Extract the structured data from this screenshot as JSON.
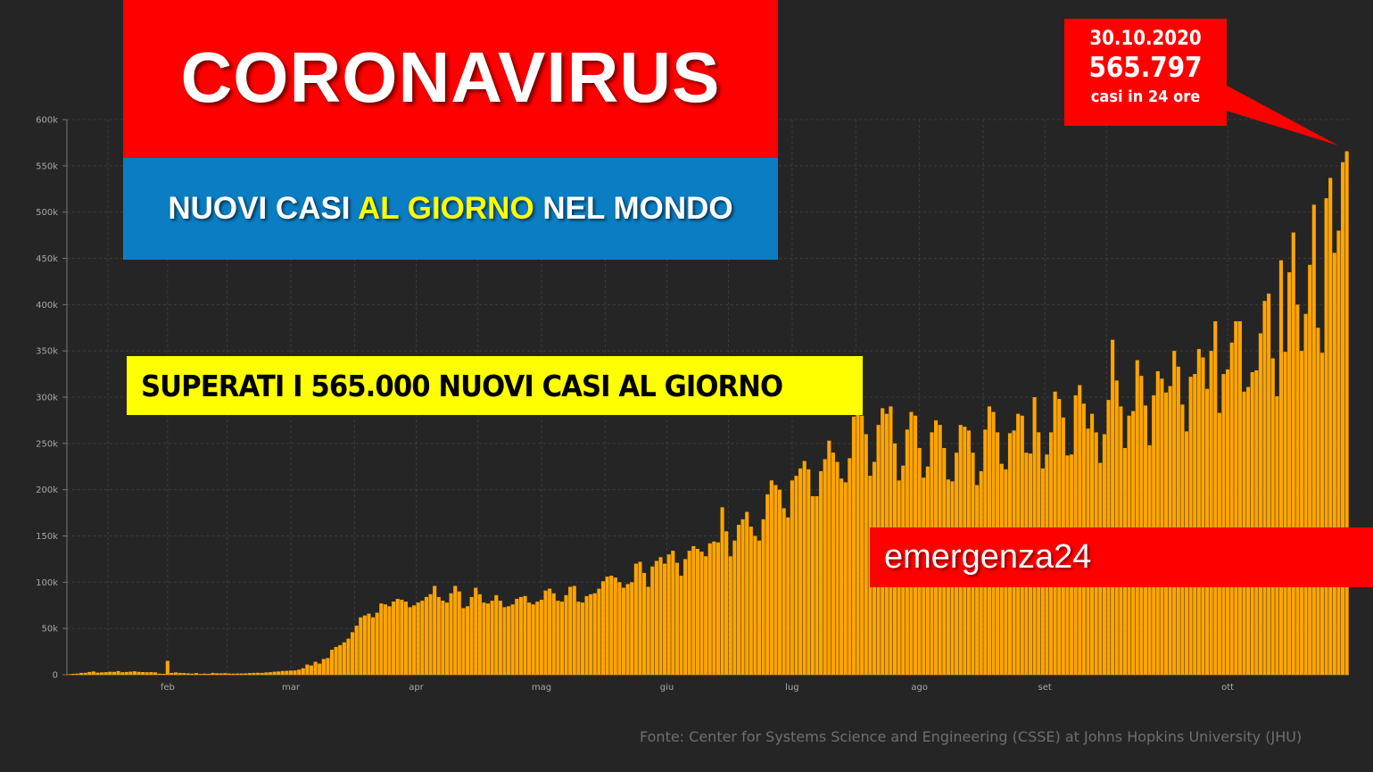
{
  "header": {
    "title": "CORONAVIRUS",
    "subtitle_part1": "NUOVI CASI ",
    "subtitle_highlight": "AL GIORNO",
    "subtitle_part2": " NEL MONDO",
    "banner": "SUPERATI I 565.000 NUOVI CASI AL GIORNO",
    "brand": "emergenza24",
    "source": "Fonte: Center for Systems Science and Engineering (CSSE) at Johns Hopkins University (JHU)"
  },
  "callout": {
    "date": "30.10.2020",
    "value": "565.797",
    "caption": "casi in 24 ore"
  },
  "colors": {
    "background": "#252525",
    "bar": "#ffa500",
    "title_bg": "#ff0000",
    "subtitle_bg": "#0b7dc2",
    "highlight": "#ffff00",
    "banner_bg": "#ffff00"
  },
  "chart_data": {
    "type": "bar",
    "title": "",
    "xlabel": "",
    "ylabel": "",
    "ylim": [
      0,
      600000
    ],
    "y_ticks": [
      {
        "value": 0,
        "label": "0"
      },
      {
        "value": 50000,
        "label": "50k"
      },
      {
        "value": 100000,
        "label": "100k"
      },
      {
        "value": 150000,
        "label": "150k"
      },
      {
        "value": 200000,
        "label": "200k"
      },
      {
        "value": 250000,
        "label": "250k"
      },
      {
        "value": 300000,
        "label": "300k"
      },
      {
        "value": 350000,
        "label": "350k"
      },
      {
        "value": 400000,
        "label": "400k"
      },
      {
        "value": 450000,
        "label": "450k"
      },
      {
        "value": 500000,
        "label": "500k"
      },
      {
        "value": 550000,
        "label": "550k"
      },
      {
        "value": 600000,
        "label": "600k"
      }
    ],
    "x_start": "2020-01-22",
    "x_end": "2020-10-30",
    "month_ticks": [
      {
        "date": "2020-02-01",
        "label": "feb"
      },
      {
        "date": "2020-03-01",
        "label": "mar"
      },
      {
        "date": "2020-04-01",
        "label": "apr"
      },
      {
        "date": "2020-05-01",
        "label": "mag"
      },
      {
        "date": "2020-06-01",
        "label": "giu"
      },
      {
        "date": "2020-07-01",
        "label": "lug"
      },
      {
        "date": "2020-08-01",
        "label": "ago"
      },
      {
        "date": "2020-09-01",
        "label": "set"
      },
      {
        "date": "2020-10-01",
        "label": "ott"
      }
    ],
    "grid": true,
    "series": [
      {
        "name": "",
        "values": [
          500,
          1000,
          1200,
          2000,
          2100,
          3000,
          3500,
          2300,
          2500,
          2800,
          3200,
          3100,
          3900,
          2700,
          3000,
          3300,
          3700,
          3100,
          2900,
          2700,
          2800,
          2600,
          1200,
          1000,
          15000,
          2000,
          2500,
          2000,
          1800,
          1500,
          1200,
          1800,
          900,
          1200,
          1000,
          2000,
          1600,
          1500,
          1700,
          1300,
          1200,
          1300,
          1400,
          1500,
          1800,
          2000,
          2100,
          2000,
          2500,
          2700,
          3300,
          3500,
          4000,
          4200,
          4500,
          4600,
          5500,
          7000,
          11000,
          10000,
          14000,
          12000,
          17000,
          18000,
          27000,
          30000,
          32000,
          35000,
          39000,
          46000,
          53000,
          62000,
          64000,
          66000,
          62000,
          67000,
          77000,
          76000,
          74000,
          79000,
          82000,
          81000,
          79000,
          73000,
          75000,
          78000,
          80000,
          84000,
          87000,
          96000,
          84000,
          80000,
          78000,
          88000,
          96000,
          90000,
          72000,
          74000,
          84000,
          94000,
          87000,
          78000,
          77000,
          80000,
          86000,
          80000,
          73000,
          74000,
          76000,
          82000,
          84000,
          85000,
          78000,
          76000,
          79000,
          81000,
          91000,
          93000,
          88000,
          80000,
          79000,
          86000,
          95000,
          96000,
          79000,
          78000,
          85000,
          87000,
          88000,
          93000,
          101000,
          106000,
          107000,
          105000,
          100000,
          94000,
          98000,
          100000,
          120000,
          122000,
          110000,
          95000,
          117000,
          123000,
          127000,
          120000,
          130000,
          134000,
          121000,
          107000,
          125000,
          134000,
          139000,
          136000,
          133000,
          128000,
          142000,
          144000,
          143000,
          181000,
          155000,
          128000,
          145000,
          162000,
          168000,
          176000,
          160000,
          150000,
          145000,
          168000,
          195000,
          210000,
          205000,
          200000,
          180000,
          170000,
          210000,
          215000,
          223000,
          231000,
          222000,
          193000,
          193000,
          220000,
          233000,
          253000,
          240000,
          230000,
          212000,
          208000,
          234000,
          279000,
          283000,
          280000,
          260000,
          215000,
          230000,
          270000,
          288000,
          282000,
          290000,
          250000,
          210000,
          226000,
          265000,
          284000,
          280000,
          245000,
          213000,
          225000,
          262000,
          275000,
          270000,
          245000,
          211000,
          209000,
          240000,
          270000,
          268000,
          264000,
          240000,
          205000,
          220000,
          265000,
          290000,
          284000,
          262000,
          228000,
          222000,
          261000,
          264000,
          282000,
          280000,
          240000,
          239000,
          300000,
          262000,
          223000,
          238000,
          262000,
          306000,
          298000,
          278000,
          237000,
          238000,
          302000,
          313000,
          293000,
          266000,
          282000,
          262000,
          229000,
          260000,
          297000,
          362000,
          318000,
          290000,
          245000,
          280000,
          285000,
          340000,
          323000,
          291000,
          248000,
          302000,
          328000,
          320000,
          305000,
          312000,
          350000,
          333000,
          292000,
          263000,
          322000,
          325000,
          352000,
          343000,
          309000,
          350000,
          382000,
          283000,
          325000,
          330000,
          359000,
          382000,
          382000,
          306000,
          311000,
          327000,
          329000,
          369000,
          404000,
          412000,
          342000,
          301000,
          448000,
          349000,
          435000,
          478000,
          400000,
          350000,
          390000,
          443000,
          508000,
          375000,
          348000,
          515000,
          537000,
          456000,
          480000,
          554000,
          565797
        ]
      }
    ]
  }
}
